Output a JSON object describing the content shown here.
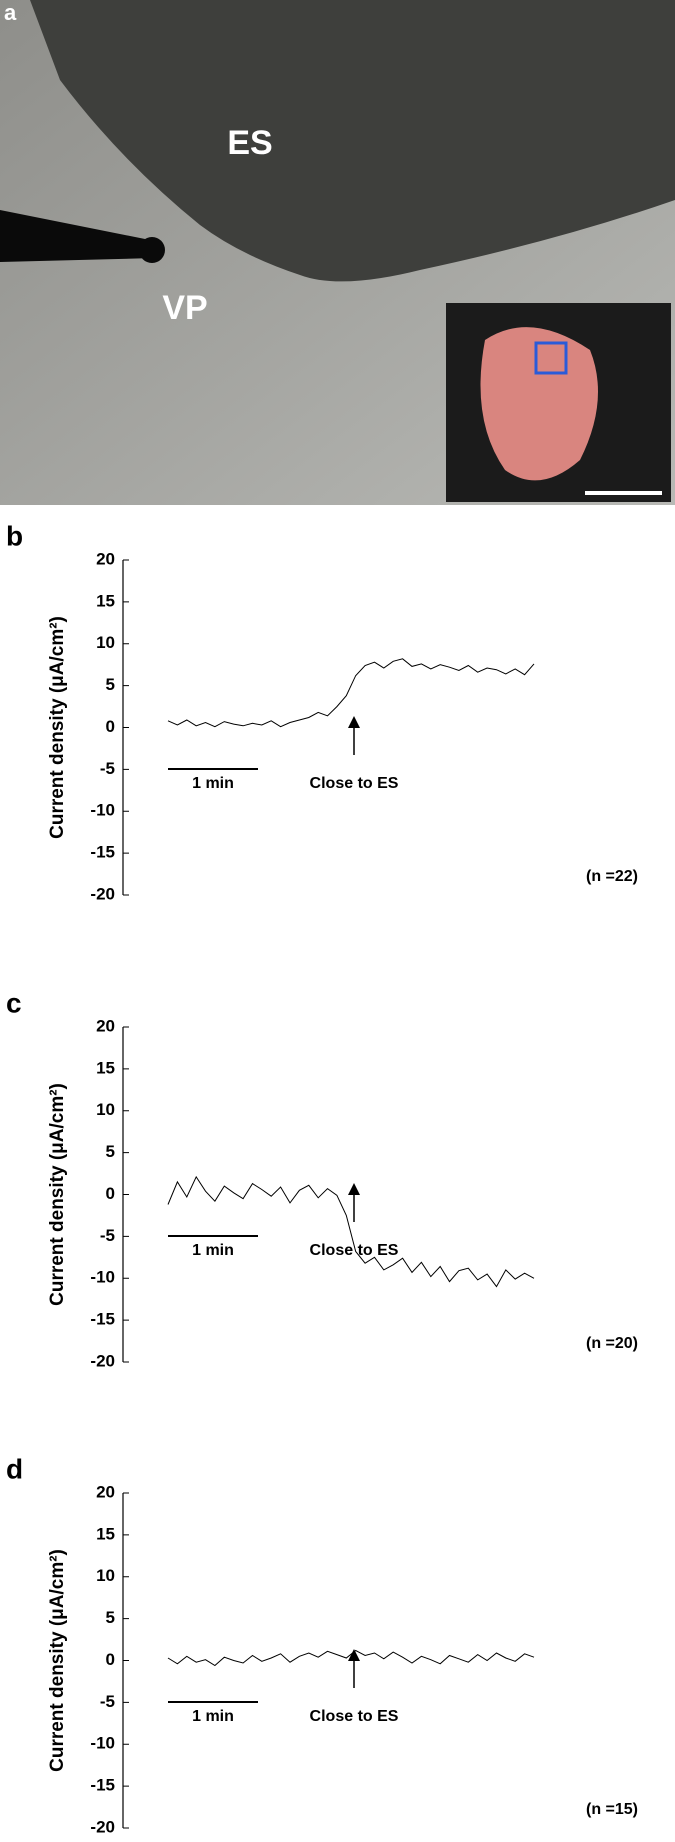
{
  "photo": {
    "label": "a",
    "regions": [
      "ES",
      "VP"
    ]
  },
  "chart_data": [
    {
      "type": "line",
      "panel_label": "b",
      "ylabel": "Current density (μA/cm²)",
      "ylim": [
        -20,
        20
      ],
      "yticks": [
        20,
        15,
        10,
        5,
        0,
        -5,
        -10,
        -15,
        -20
      ],
      "color": "#000000",
      "annotations": [
        "1 min",
        "Close to ES",
        "(n =22)"
      ],
      "values": [
        0.8,
        0.3,
        0.9,
        0.2,
        0.6,
        0.1,
        0.7,
        0.4,
        0.2,
        0.5,
        0.3,
        0.8,
        0.1,
        0.6,
        0.9,
        1.2,
        1.8,
        1.4,
        2.5,
        3.8,
        6.2,
        7.4,
        7.8,
        7.1,
        7.9,
        8.2,
        7.3,
        7.6,
        7.0,
        7.5,
        7.2,
        6.8,
        7.4,
        6.6,
        7.1,
        6.9,
        6.4,
        7.0,
        6.3,
        7.6
      ]
    },
    {
      "type": "line",
      "panel_label": "c",
      "ylabel": "Current density (μA/cm²)",
      "ylim": [
        -20,
        20
      ],
      "yticks": [
        20,
        15,
        10,
        5,
        0,
        -5,
        -10,
        -15,
        -20
      ],
      "color": "#000000",
      "annotations": [
        "1 min",
        "Close to ES",
        "(n =20)"
      ],
      "values": [
        -1.2,
        1.5,
        -0.3,
        2.1,
        0.4,
        -0.8,
        1.0,
        0.2,
        -0.5,
        1.3,
        0.6,
        -0.2,
        0.9,
        -1.0,
        0.5,
        1.1,
        -0.4,
        0.7,
        -0.1,
        -2.5,
        -6.8,
        -8.2,
        -7.5,
        -9.0,
        -8.4,
        -7.6,
        -9.3,
        -8.1,
        -9.8,
        -8.6,
        -10.4,
        -9.1,
        -8.8,
        -10.2,
        -9.5,
        -11.0,
        -9.0,
        -10.1,
        -9.4,
        -10.0
      ]
    },
    {
      "type": "line",
      "panel_label": "d",
      "ylabel": "Current density (μA/cm²)",
      "ylim": [
        -20,
        20
      ],
      "yticks": [
        20,
        15,
        10,
        5,
        0,
        -5,
        -10,
        -15,
        -20
      ],
      "color": "#000000",
      "annotations": [
        "1 min",
        "Close to ES",
        "(n =15)"
      ],
      "values": [
        0.3,
        -0.4,
        0.5,
        -0.2,
        0.1,
        -0.6,
        0.4,
        0.0,
        -0.3,
        0.6,
        -0.1,
        0.3,
        0.8,
        -0.2,
        0.5,
        0.9,
        0.4,
        1.1,
        0.7,
        0.3,
        1.2,
        0.6,
        0.9,
        0.2,
        1.0,
        0.4,
        -0.3,
        0.5,
        0.1,
        -0.4,
        0.6,
        0.2,
        -0.2,
        0.7,
        0.0,
        0.9,
        0.3,
        -0.1,
        0.8,
        0.4
      ]
    }
  ]
}
